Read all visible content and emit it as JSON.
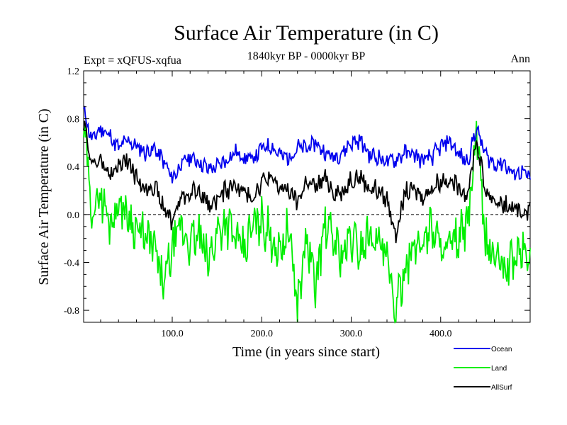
{
  "chart_data": {
    "type": "line",
    "title": "Surface Air Temperature (in C)",
    "subtitle_left": "Expt = xQFUS-xqfua",
    "subtitle_center": "1840kyr BP - 0000kyr BP",
    "subtitle_right": "Ann",
    "xlabel": "Time (in years since start)",
    "ylabel": "Surface Air Temperature (in C)",
    "xlim": [
      1,
      500
    ],
    "ylim": [
      -0.9,
      1.2
    ],
    "xticks": [
      100,
      200,
      300,
      400
    ],
    "xtick_labels": [
      "100.0",
      "200.0",
      "300.0",
      "400.0"
    ],
    "yticks": [
      1.2,
      0.8,
      0.4,
      0.0,
      -0.4,
      -0.8
    ],
    "ytick_labels": [
      "1.2",
      "0.8",
      "0.4",
      "0.0",
      "-0.4",
      "-0.8"
    ],
    "reference_line": 0.0,
    "series": [
      {
        "name": "Ocean",
        "color": "#0000ee",
        "x": [
          1,
          10,
          20,
          30,
          40,
          50,
          60,
          70,
          80,
          90,
          100,
          110,
          120,
          130,
          140,
          150,
          160,
          170,
          180,
          190,
          200,
          210,
          220,
          230,
          240,
          250,
          260,
          270,
          280,
          290,
          300,
          310,
          320,
          330,
          340,
          350,
          360,
          370,
          380,
          390,
          400,
          410,
          420,
          430,
          440,
          450,
          460,
          470,
          480,
          490,
          500
        ],
        "values": [
          0.88,
          0.62,
          0.72,
          0.66,
          0.55,
          0.62,
          0.57,
          0.52,
          0.55,
          0.45,
          0.3,
          0.42,
          0.48,
          0.44,
          0.38,
          0.4,
          0.45,
          0.52,
          0.48,
          0.46,
          0.55,
          0.58,
          0.5,
          0.47,
          0.56,
          0.55,
          0.6,
          0.52,
          0.48,
          0.52,
          0.6,
          0.62,
          0.5,
          0.48,
          0.44,
          0.46,
          0.52,
          0.5,
          0.45,
          0.48,
          0.56,
          0.62,
          0.5,
          0.44,
          0.72,
          0.5,
          0.42,
          0.44,
          0.34,
          0.36,
          0.3
        ]
      },
      {
        "name": "Land",
        "color": "#00ee00",
        "x": [
          1,
          10,
          20,
          30,
          40,
          50,
          60,
          70,
          80,
          90,
          100,
          110,
          120,
          130,
          140,
          150,
          160,
          170,
          180,
          190,
          200,
          210,
          220,
          230,
          240,
          250,
          260,
          270,
          280,
          290,
          300,
          310,
          320,
          330,
          340,
          350,
          360,
          370,
          380,
          390,
          400,
          410,
          420,
          430,
          440,
          450,
          460,
          470,
          480,
          490,
          500
        ],
        "values": [
          0.75,
          0.02,
          0.18,
          -0.08,
          0.1,
          0.0,
          -0.12,
          -0.2,
          -0.28,
          -0.6,
          -0.3,
          -0.1,
          -0.25,
          -0.18,
          -0.4,
          -0.15,
          -0.05,
          -0.2,
          -0.32,
          -0.1,
          -0.05,
          -0.18,
          -0.3,
          -0.12,
          -0.75,
          -0.2,
          -0.6,
          -0.1,
          -0.2,
          -0.35,
          -0.2,
          -0.3,
          -0.15,
          -0.22,
          -0.4,
          -0.85,
          -0.4,
          -0.3,
          -0.2,
          -0.1,
          -0.25,
          -0.3,
          -0.2,
          -0.1,
          0.68,
          -0.22,
          -0.35,
          -0.45,
          -0.4,
          -0.3,
          -0.35
        ]
      },
      {
        "name": "AllSurf",
        "color": "#000000",
        "x": [
          1,
          10,
          20,
          30,
          40,
          50,
          60,
          70,
          80,
          90,
          100,
          110,
          120,
          130,
          140,
          150,
          160,
          170,
          180,
          190,
          200,
          210,
          220,
          230,
          240,
          250,
          260,
          270,
          280,
          290,
          300,
          310,
          320,
          330,
          340,
          350,
          360,
          370,
          380,
          390,
          400,
          410,
          420,
          430,
          440,
          450,
          460,
          470,
          480,
          490,
          500
        ],
        "values": [
          0.78,
          0.42,
          0.45,
          0.32,
          0.4,
          0.45,
          0.3,
          0.22,
          0.25,
          0.05,
          -0.05,
          0.15,
          0.18,
          0.2,
          0.08,
          0.12,
          0.2,
          0.25,
          0.18,
          0.15,
          0.28,
          0.3,
          0.22,
          0.2,
          0.1,
          0.28,
          0.22,
          0.3,
          0.2,
          0.18,
          0.3,
          0.32,
          0.22,
          0.2,
          0.12,
          -0.15,
          0.18,
          0.2,
          0.15,
          0.22,
          0.28,
          0.3,
          0.22,
          0.18,
          0.62,
          0.2,
          0.12,
          0.08,
          0.05,
          0.02,
          0.05
        ]
      }
    ]
  }
}
